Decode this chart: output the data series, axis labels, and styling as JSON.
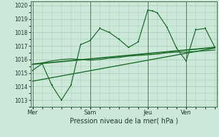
{
  "xlabel": "Pression niveau de la mer( hPa )",
  "ylim": [
    1012.5,
    1020.3
  ],
  "yticks": [
    1013,
    1014,
    1015,
    1016,
    1017,
    1018,
    1019,
    1020
  ],
  "bg_color": "#cce8d8",
  "grid_color": "#a0c8b0",
  "line_color": "#1a6b2a",
  "day_labels": [
    "Mer",
    "Sam",
    "Jeu",
    "Ven"
  ],
  "day_positions": [
    0,
    3,
    6,
    8
  ],
  "xlim": [
    -0.1,
    9.6
  ],
  "line1_x": [
    0,
    0.5,
    1,
    1.5,
    2,
    2.5,
    3,
    3.5,
    4,
    4.5,
    5,
    5.5,
    6,
    6.25,
    6.5,
    7,
    7.5,
    8,
    8.5,
    9,
    9.5
  ],
  "line1_y": [
    1015.2,
    1015.7,
    1014.1,
    1013.0,
    1014.1,
    1017.1,
    1017.4,
    1018.3,
    1018.0,
    1017.5,
    1016.9,
    1017.3,
    1019.65,
    1019.6,
    1019.45,
    1018.4,
    1016.85,
    1015.9,
    1018.2,
    1018.3,
    1016.9
  ],
  "line2_x": [
    0,
    9.5
  ],
  "line2_y": [
    1015.65,
    1016.9
  ],
  "line3_x": [
    0,
    9.5
  ],
  "line3_y": [
    1014.4,
    1016.85
  ],
  "line4_x": [
    0,
    0.5,
    1,
    1.5,
    2,
    2.5,
    3,
    3.5,
    4,
    4.5,
    5,
    5.5,
    6,
    6.5,
    7,
    7.5,
    8,
    8.5,
    9,
    9.5
  ],
  "line4_y": [
    1015.65,
    1015.75,
    1015.9,
    1016.0,
    1016.05,
    1016.0,
    1015.95,
    1016.0,
    1016.1,
    1016.15,
    1016.25,
    1016.3,
    1016.35,
    1016.4,
    1016.5,
    1016.55,
    1016.55,
    1016.6,
    1016.65,
    1016.7
  ]
}
